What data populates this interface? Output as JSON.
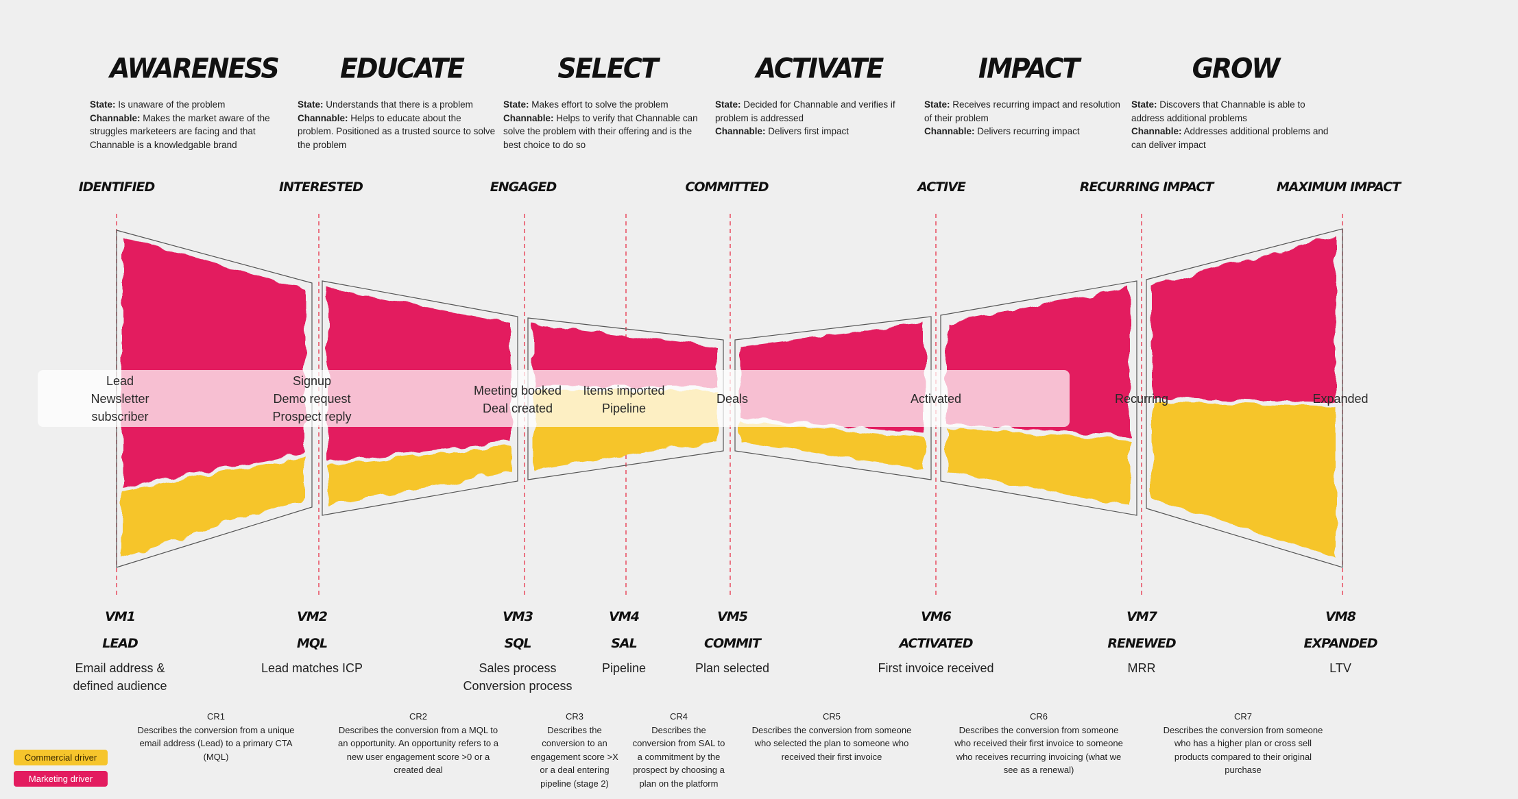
{
  "stages": [
    {
      "title": "AWARENESS",
      "state_label": "State:",
      "state": "Is unaware of the problem",
      "channable_label": "Channable:",
      "channable": "Makes the market aware of the struggles marketeers are facing and that Channable is a knowledgable brand"
    },
    {
      "title": "EDUCATE",
      "state_label": "State:",
      "state": "Understands that there is a problem",
      "channable_label": "Channable:",
      "channable": "Helps to educate about the problem. Positioned as a trusted source to solve the problem"
    },
    {
      "title": "SELECT",
      "state_label": "State:",
      "state": "Makes effort to solve the problem",
      "channable_label": "Channable:",
      "channable": "Helps to verify that Channable can solve the problem with their offering and is the best choice to do so"
    },
    {
      "title": "ACTIVATE",
      "state_label": "State:",
      "state": "Decided for Channable and verifies if problem is addressed",
      "channable_label": "Channable:",
      "channable": "Delivers first impact"
    },
    {
      "title": "IMPACT",
      "state_label": "State:",
      "state": "Receives recurring impact and resolution of their problem",
      "channable_label": "Channable:",
      "channable": "Delivers recurring impact"
    },
    {
      "title": "GROW",
      "state_label": "State:",
      "state": "Discovers that Channable is able to address additional problems",
      "channable_label": "Channable:",
      "channable": "Addresses additional problems and can deliver impact"
    }
  ],
  "milestones": [
    "IDENTIFIED",
    "INTERESTED",
    "ENGAGED",
    "COMMITTED",
    "ACTIVE",
    "RECURRING IMPACT",
    "MAXIMUM IMPACT"
  ],
  "band_labels": [
    [
      "Lead",
      "Newsletter",
      "subscriber"
    ],
    [
      "Signup",
      "Demo request",
      "Prospect reply"
    ],
    [
      "Meeting booked",
      "Deal created"
    ],
    [
      "Items imported",
      "Pipeline"
    ],
    [
      "Deals"
    ],
    [
      "Activated"
    ],
    [
      "Recurring"
    ],
    [
      "Expanded"
    ]
  ],
  "value_moments": [
    {
      "code": "VM1",
      "name": "LEAD",
      "desc": [
        "Email address &",
        "defined audience"
      ]
    },
    {
      "code": "VM2",
      "name": "MQL",
      "desc": [
        "Lead matches ICP"
      ]
    },
    {
      "code": "VM3",
      "name": "SQL",
      "desc": [
        "Sales process",
        "Conversion process"
      ]
    },
    {
      "code": "VM4",
      "name": "SAL",
      "desc": [
        "Pipeline"
      ]
    },
    {
      "code": "VM5",
      "name": "COMMIT",
      "desc": [
        "Plan selected"
      ]
    },
    {
      "code": "VM6",
      "name": "ACTIVATED",
      "desc": [
        "First invoice received"
      ]
    },
    {
      "code": "VM7",
      "name": "RENEWED",
      "desc": [
        "MRR"
      ]
    },
    {
      "code": "VM8",
      "name": "EXPANDED",
      "desc": [
        "LTV"
      ]
    }
  ],
  "conversion_rates": [
    {
      "code": "CR1",
      "desc": [
        "Describes the conversion from a unique",
        "email address (Lead) to a primary CTA",
        "(MQL)"
      ]
    },
    {
      "code": "CR2",
      "desc": [
        "Describes the conversion from a MQL to",
        "an opportunity. An opportunity refers to a",
        "new user engagement score >0 or a",
        "created deal"
      ]
    },
    {
      "code": "CR3",
      "desc": [
        "Describes the",
        "conversion to an",
        "engagement score >X",
        "or a deal entering",
        "pipeline (stage 2)"
      ]
    },
    {
      "code": "CR4",
      "desc": [
        "Describes the",
        "conversion from SAL to",
        "a commitment by the",
        "prospect by choosing a",
        "plan on the platform"
      ]
    },
    {
      "code": "CR5",
      "desc": [
        "Describes the conversion from someone",
        "who selected the plan to someone who",
        "received their first invoice"
      ]
    },
    {
      "code": "CR6",
      "desc": [
        "Describes the conversion from someone",
        "who received their first invoice to someone",
        "who receives recurring invoicing (what we",
        "see as a renewal)"
      ]
    },
    {
      "code": "CR7",
      "desc": [
        "Describes the conversion from someone",
        "who has a higher plan or cross sell",
        "products compared to their original",
        "purchase"
      ]
    }
  ],
  "legend": {
    "commercial": "Commercial driver",
    "marketing": "Marketing driver"
  },
  "colors": {
    "marketing": "#e31c5f",
    "commercial": "#f6c52c",
    "divider": "#e84a5f"
  }
}
